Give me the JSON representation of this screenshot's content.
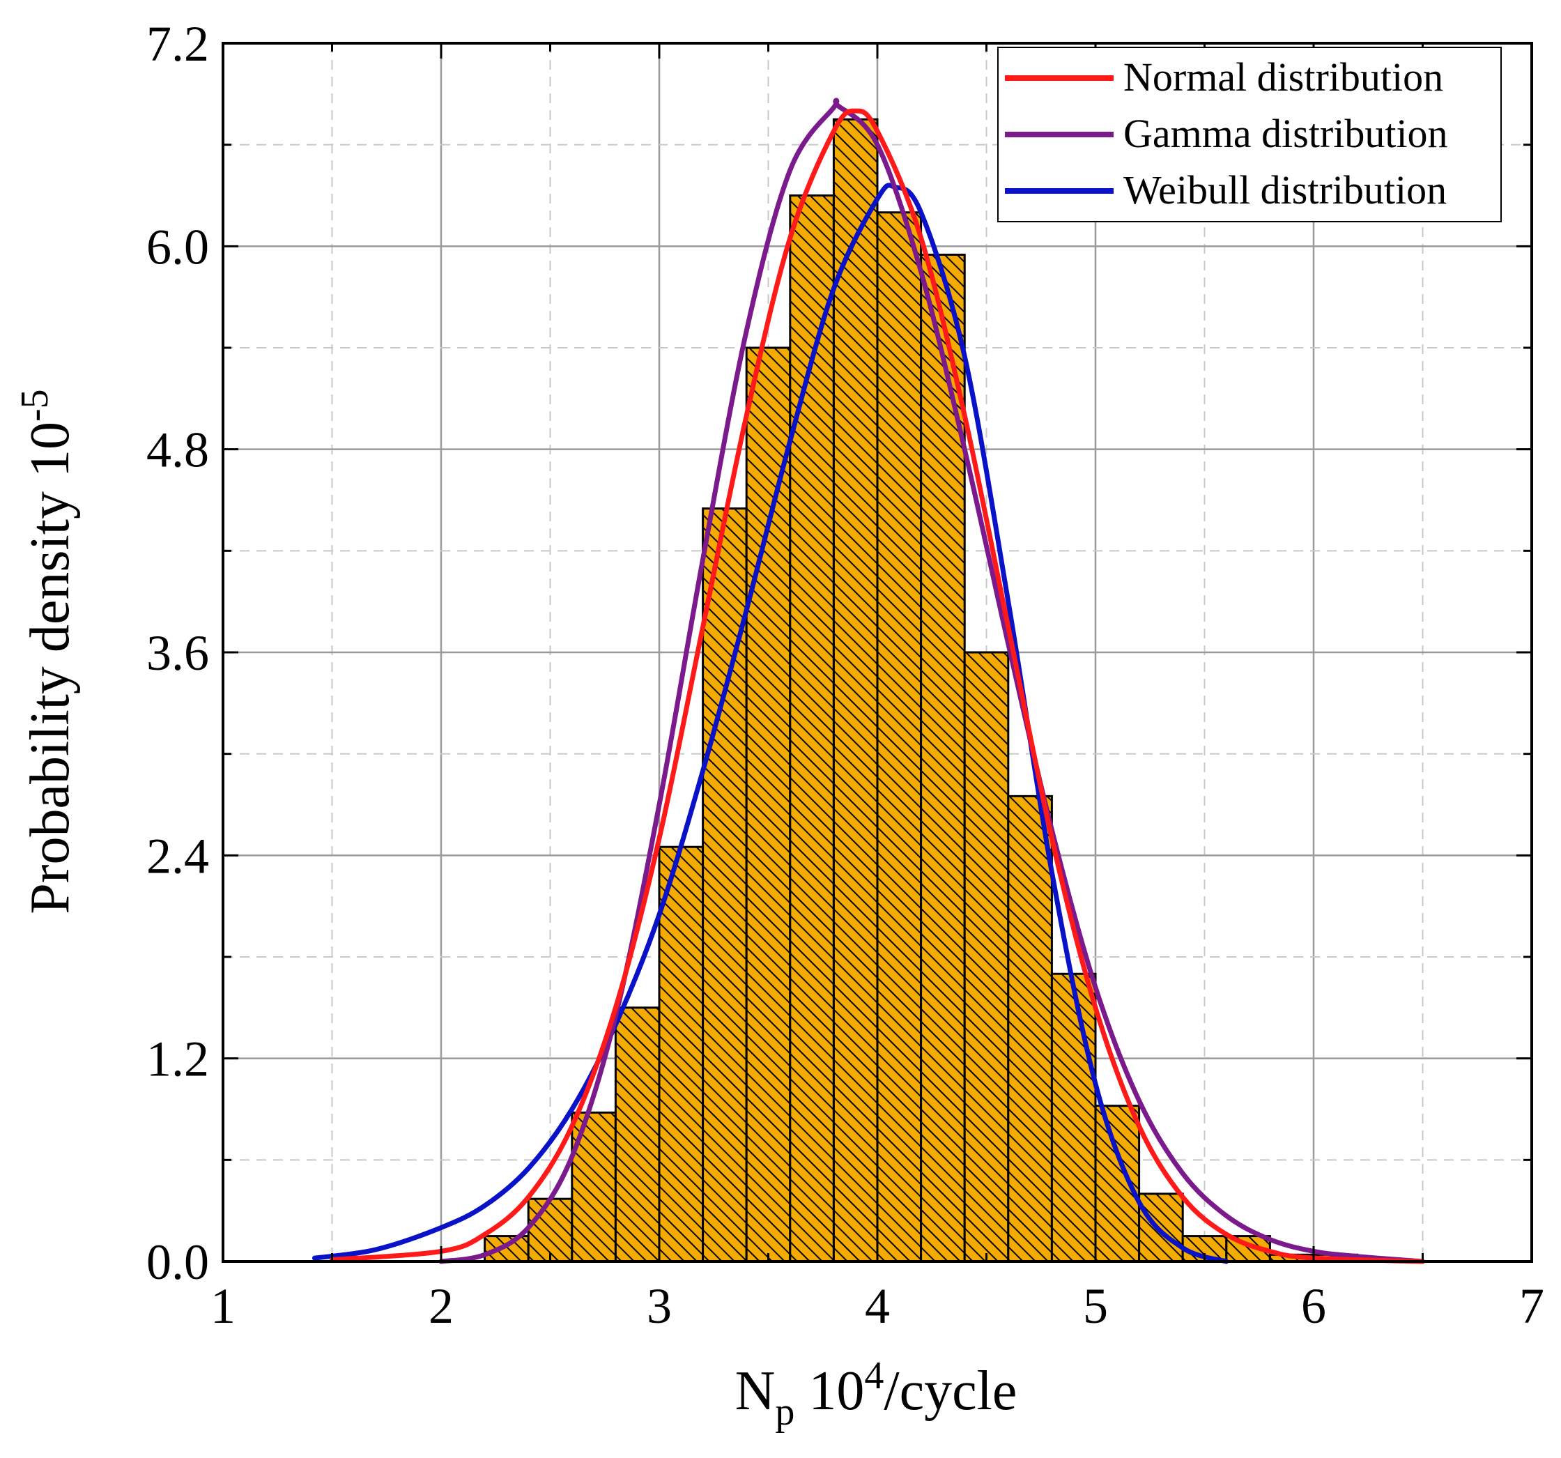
{
  "chart_data": {
    "type": "histogram",
    "title": "",
    "xlabel": {
      "base": "N",
      "sub": "p",
      "mid": " 10",
      "sup": "4",
      "tail": "/cycle"
    },
    "ylabel": {
      "base": "Probability density 10",
      "sup": "-5"
    },
    "xlim": [
      1,
      7
    ],
    "ylim": [
      0,
      7.2
    ],
    "x_ticks": [
      "1",
      "2",
      "3",
      "4",
      "5",
      "6",
      "7"
    ],
    "y_ticks": [
      "0.0",
      "1.2",
      "2.4",
      "3.6",
      "4.8",
      "6.0",
      "7.2"
    ],
    "grid": "major solid, minor dashed",
    "legend_position": "top-right",
    "colors": {
      "bar_fill": "#F5AA00",
      "hatch": "#000000",
      "normal": "#FF1A1A",
      "gamma": "#7B1A8C",
      "weibull": "#0A12C8"
    },
    "bins": {
      "edges": [
        2.2,
        2.4,
        2.6,
        2.8,
        3.0,
        3.2,
        3.4,
        3.6,
        3.8,
        4.0,
        4.2,
        4.4,
        4.6,
        4.8,
        5.0,
        5.2,
        5.4,
        5.6,
        5.8,
        6.0,
        6.2
      ],
      "values": [
        0.15,
        0.37,
        0.88,
        1.5,
        2.45,
        4.45,
        5.4,
        6.3,
        6.75,
        6.2,
        5.95,
        3.6,
        2.75,
        1.7,
        0.92,
        0.4,
        0.15,
        0.15,
        0.04,
        0.04
      ]
    },
    "series": [
      {
        "name": "Normal distribution",
        "color": "#FF1A1A",
        "x": [
          1.5,
          2.0,
          2.2,
          2.4,
          2.6,
          2.8,
          3.0,
          3.2,
          3.4,
          3.6,
          3.8,
          3.9,
          4.0,
          4.2,
          4.4,
          4.6,
          4.8,
          5.0,
          5.2,
          5.4,
          5.6,
          5.8,
          6.0,
          6.5
        ],
        "y": [
          0.01,
          0.06,
          0.16,
          0.38,
          0.8,
          1.5,
          2.5,
          3.75,
          5.0,
          6.05,
          6.68,
          6.8,
          6.68,
          6.05,
          5.0,
          3.75,
          2.5,
          1.5,
          0.8,
          0.38,
          0.16,
          0.06,
          0.02,
          0.0
        ]
      },
      {
        "name": "Gamma distribution",
        "color": "#7B1A8C",
        "x": [
          2.0,
          2.2,
          2.4,
          2.6,
          2.8,
          3.0,
          3.2,
          3.4,
          3.6,
          3.8,
          3.82,
          4.0,
          4.2,
          4.4,
          4.6,
          4.8,
          5.0,
          5.2,
          5.4,
          5.6,
          5.8,
          6.0,
          6.2,
          6.5
        ],
        "y": [
          0.0,
          0.04,
          0.2,
          0.62,
          1.45,
          2.7,
          4.15,
          5.5,
          6.45,
          6.82,
          6.83,
          6.6,
          5.85,
          4.8,
          3.65,
          2.55,
          1.62,
          0.95,
          0.52,
          0.27,
          0.13,
          0.06,
          0.03,
          0.0
        ]
      },
      {
        "name": "Weibull distribution",
        "color": "#0A12C8",
        "x": [
          1.42,
          1.7,
          2.0,
          2.2,
          2.4,
          2.6,
          2.8,
          3.0,
          3.2,
          3.4,
          3.6,
          3.8,
          4.0,
          4.08,
          4.2,
          4.4,
          4.6,
          4.8,
          5.0,
          5.2,
          5.4,
          5.6
        ],
        "y": [
          0.02,
          0.07,
          0.2,
          0.33,
          0.55,
          0.9,
          1.4,
          2.05,
          2.9,
          3.85,
          4.85,
          5.75,
          6.28,
          6.35,
          6.2,
          5.35,
          3.9,
          2.3,
          1.05,
          0.35,
          0.08,
          0.0
        ]
      }
    ]
  }
}
